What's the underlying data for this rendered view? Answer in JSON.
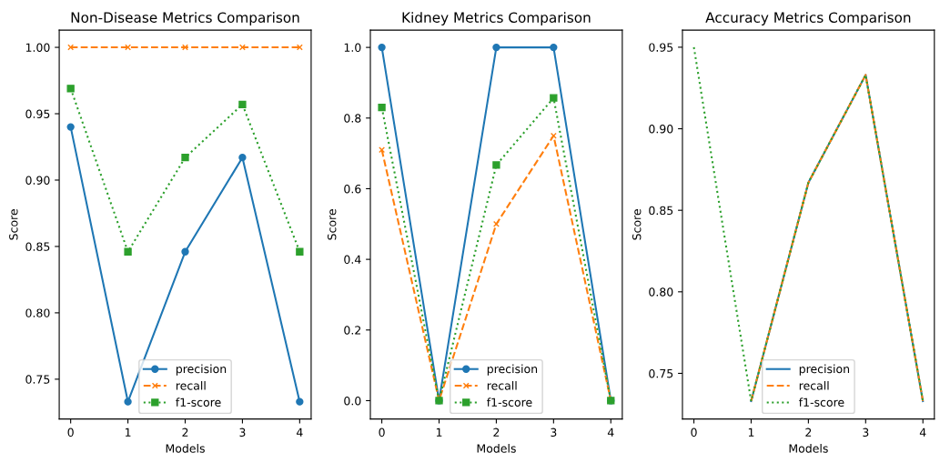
{
  "chart_data": [
    {
      "type": "line",
      "title": "Non-Disease Metrics Comparison",
      "xlabel": "Models",
      "ylabel": "Score",
      "x": [
        0,
        1,
        2,
        3,
        4
      ],
      "xlim": [
        -0.2,
        4.2
      ],
      "xticks": [
        0,
        1,
        2,
        3,
        4
      ],
      "ylim": [
        0.72,
        1.013
      ],
      "yticks": [
        {
          "value": 0.75,
          "label": "0.75"
        },
        {
          "value": 0.8,
          "label": "0.80"
        },
        {
          "value": 0.85,
          "label": "0.85"
        },
        {
          "value": 0.9,
          "label": "0.90"
        },
        {
          "value": 0.95,
          "label": "0.95"
        },
        {
          "value": 1.0,
          "label": "1.00"
        }
      ],
      "grid": false,
      "legend": "bottom",
      "series": [
        {
          "name": "precision",
          "color": "#1f77b4",
          "marker": "circle",
          "line_style": "solid",
          "values": [
            0.94,
            0.733,
            0.846,
            0.917,
            0.733
          ]
        },
        {
          "name": "recall",
          "color": "#ff7f0e",
          "marker": "cross",
          "line_style": "dashed",
          "values": [
            1.0,
            1.0,
            1.0,
            1.0,
            1.0
          ]
        },
        {
          "name": "f1-score",
          "color": "#2ca02c",
          "marker": "square",
          "line_style": "dotted",
          "values": [
            0.969,
            0.846,
            0.917,
            0.957,
            0.846
          ]
        }
      ]
    },
    {
      "type": "line",
      "title": "Kidney Metrics Comparison",
      "xlabel": "Models",
      "ylabel": "Score",
      "x": [
        0,
        1,
        2,
        3,
        4
      ],
      "xlim": [
        -0.2,
        4.2
      ],
      "xticks": [
        0,
        1,
        2,
        3,
        4
      ],
      "ylim": [
        -0.052,
        1.049
      ],
      "yticks": [
        {
          "value": 0.0,
          "label": "0.0"
        },
        {
          "value": 0.2,
          "label": "0.2"
        },
        {
          "value": 0.4,
          "label": "0.4"
        },
        {
          "value": 0.6,
          "label": "0.6"
        },
        {
          "value": 0.8,
          "label": "0.8"
        },
        {
          "value": 1.0,
          "label": "1.0"
        }
      ],
      "grid": false,
      "legend": "bottom",
      "series": [
        {
          "name": "precision",
          "color": "#1f77b4",
          "marker": "circle",
          "line_style": "solid",
          "values": [
            1.0,
            0.0,
            1.0,
            1.0,
            0.0
          ]
        },
        {
          "name": "recall",
          "color": "#ff7f0e",
          "marker": "cross",
          "line_style": "dashed",
          "values": [
            0.71,
            0.0,
            0.5,
            0.75,
            0.0
          ]
        },
        {
          "name": "f1-score",
          "color": "#2ca02c",
          "marker": "square",
          "line_style": "dotted",
          "values": [
            0.83,
            0.0,
            0.667,
            0.857,
            0.0
          ]
        }
      ]
    },
    {
      "type": "line",
      "title": "Accuracy Metrics Comparison",
      "xlabel": "Models",
      "ylabel": "Score",
      "x": [
        0,
        1,
        2,
        3,
        4
      ],
      "xlim": [
        -0.2,
        4.2
      ],
      "xticks": [
        0,
        1,
        2,
        3,
        4
      ],
      "ylim": [
        0.722,
        0.9605
      ],
      "yticks": [
        {
          "value": 0.75,
          "label": "0.75"
        },
        {
          "value": 0.8,
          "label": "0.80"
        },
        {
          "value": 0.85,
          "label": "0.85"
        },
        {
          "value": 0.9,
          "label": "0.90"
        },
        {
          "value": 0.95,
          "label": "0.95"
        }
      ],
      "grid": false,
      "legend": "bottom",
      "series": [
        {
          "name": "precision",
          "color": "#1f77b4",
          "marker": "none",
          "line_style": "solid",
          "values": [
            null,
            0.733,
            0.867,
            0.933,
            0.733
          ]
        },
        {
          "name": "recall",
          "color": "#ff7f0e",
          "marker": "none",
          "line_style": "dashed",
          "values": [
            null,
            0.733,
            0.867,
            0.933,
            0.733
          ]
        },
        {
          "name": "f1-score",
          "color": "#2ca02c",
          "marker": "none",
          "line_style": "dotted",
          "values": [
            0.95,
            0.733,
            0.867,
            0.933,
            0.733
          ]
        }
      ]
    }
  ]
}
